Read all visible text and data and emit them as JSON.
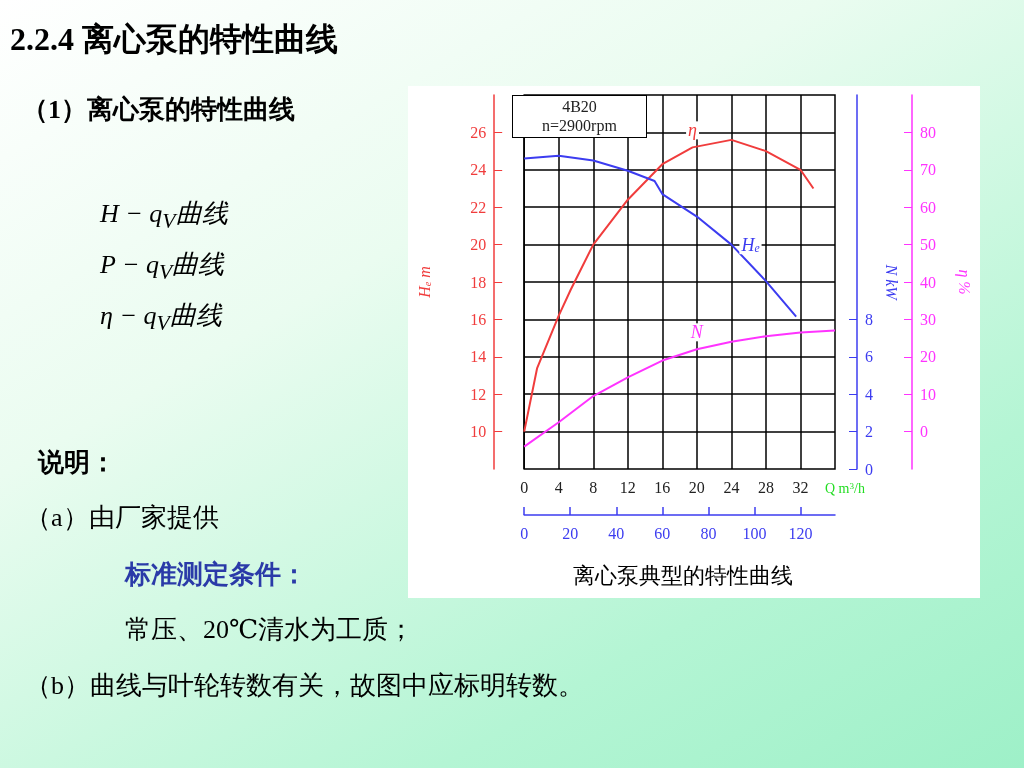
{
  "chart_data": {
    "type": "line",
    "title": "2.2.4   离心泵的特性曲线",
    "subtitle": "（1）离心泵的特性曲线",
    "xlabel": "Q m$^{3}$/h",
    "ylabel": "H$_{e}$ m",
    "y2label": "N kW",
    "y3label": "η %",
    "xlim": [
      0,
      36
    ],
    "xticks": [
      0,
      4,
      8,
      12,
      16,
      20,
      24,
      28,
      32
    ],
    "x2lim": [
      0,
      135
    ],
    "x2ticks": [
      0,
      20,
      40,
      60,
      80,
      100,
      120
    ],
    "ylim": [
      8,
      28
    ],
    "yticks": [
      10,
      12,
      14,
      16,
      18,
      20,
      22,
      24,
      26
    ],
    "y2lim": [
      0,
      20
    ],
    "y2ticks": [
      0,
      2,
      4,
      6,
      8
    ],
    "y3lim": [
      -10,
      90
    ],
    "y3ticks": [
      0,
      10,
      20,
      30,
      40,
      50,
      60,
      70,
      80
    ],
    "grid": true,
    "series": [
      {
        "name": "η",
        "color": "#f03c3c",
        "axis": "y3",
        "x": [
          0,
          1.5,
          4,
          5.4,
          8,
          12,
          16,
          19.5,
          24,
          28,
          32,
          33.5
        ],
        "values": [
          0,
          17,
          31,
          38,
          50,
          62,
          71.5,
          76,
          78,
          75,
          70,
          65
        ]
      },
      {
        "name": "H$_{e}$",
        "color": "#3c3cf0",
        "axis": "y",
        "x": [
          0,
          4,
          8,
          12,
          15.1,
          16,
          20,
          24,
          28,
          31.5
        ],
        "values": [
          24.6,
          24.75,
          24.5,
          23.95,
          23.4,
          22.7,
          21.5,
          20,
          18.05,
          16.15
        ]
      },
      {
        "name": "N",
        "color": "#ff33ff",
        "axis": "y2",
        "x": [
          0,
          4,
          8,
          12,
          16,
          20,
          24,
          28,
          32,
          36
        ],
        "values": [
          1.2,
          2.5,
          3.9,
          4.9,
          5.8,
          6.4,
          6.8,
          7.1,
          7.3,
          7.4
        ]
      }
    ],
    "annotations": [
      "4B20",
      "n=2900rpm",
      "离心泵典型的特性曲线",
      "H − q$_{V}$曲线",
      "P − q$_{V}$曲线",
      "η − q$_{V}$曲线",
      "说明：",
      "（a）由厂家提供",
      "标准测定条件：",
      "常压、20℃清水为工质；",
      "（b）曲线与叶轮转数有关，故图中应标明转数。"
    ]
  }
}
